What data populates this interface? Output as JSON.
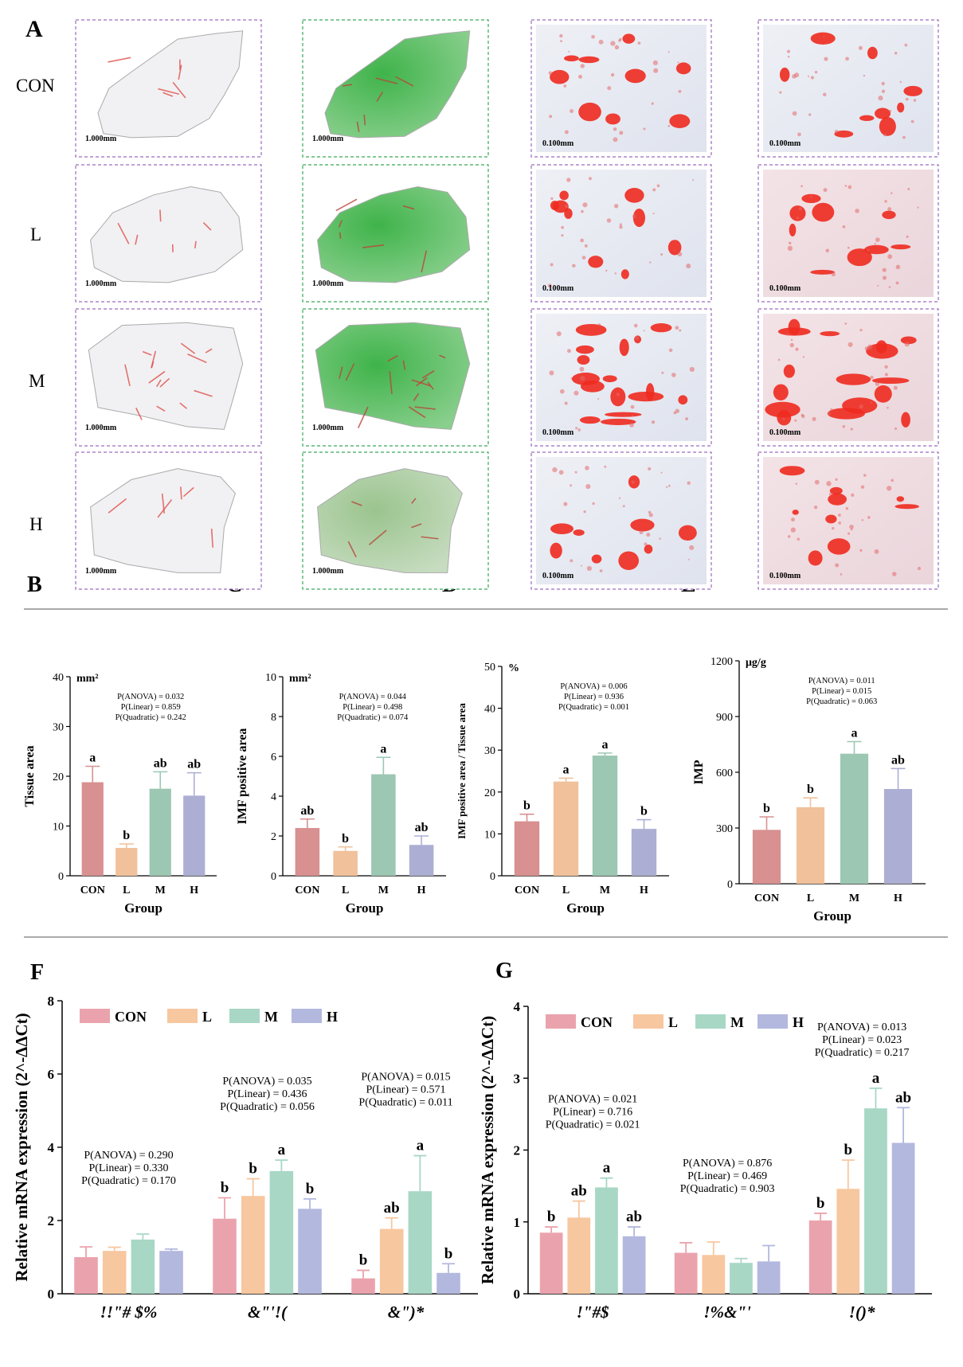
{
  "panel_letters": {
    "A": "A",
    "B": "B",
    "C": "C",
    "D": "D",
    "E": "E",
    "F": "F",
    "G": "G"
  },
  "histology": {
    "rows": [
      "CON",
      "L",
      "M",
      "H"
    ],
    "scale_low": "1.000mm",
    "scale_high": "0.100mm"
  },
  "colors": {
    "CON": "#d89090",
    "L": "#f0c19a",
    "M": "#9cc7b3",
    "H": "#acafd3",
    "CON_gene": "#eaa3ad",
    "L_gene": "#f7c79f",
    "M_gene": "#a8d7c5",
    "H_gene": "#b3b8de",
    "err": "#d89090"
  },
  "chart_data": [
    {
      "id": "B",
      "type": "bar",
      "categories": [
        "CON",
        "L",
        "M",
        "H"
      ],
      "values": [
        18.8,
        5.6,
        17.5,
        16.1
      ],
      "errors": [
        3.2,
        0.8,
        3.4,
        4.6
      ],
      "letters": [
        "a",
        "b",
        "ab",
        "ab"
      ],
      "ylim": [
        0,
        40
      ],
      "yticks": [
        0,
        10,
        20,
        30,
        40
      ],
      "ylabel": "Tissue area",
      "xlabel": "Group",
      "unit": "mm²",
      "stats": [
        "P(ANOVA) = 0.032",
        "P(Linear) = 0.859",
        "P(Quadratic) = 0.242"
      ]
    },
    {
      "id": "C",
      "type": "bar",
      "categories": [
        "CON",
        "L",
        "M",
        "H"
      ],
      "values": [
        2.4,
        1.25,
        5.1,
        1.55
      ],
      "errors": [
        0.45,
        0.2,
        0.85,
        0.45
      ],
      "letters": [
        "ab",
        "b",
        "a",
        "ab"
      ],
      "ylim": [
        0,
        10
      ],
      "yticks": [
        0,
        2,
        4,
        6,
        8,
        10
      ],
      "ylabel": "IMF positive area",
      "xlabel": "Group",
      "unit": "mm²",
      "stats": [
        "P(ANOVA) = 0.044",
        "P(Linear) = 0.498",
        "P(Quadratic) = 0.074"
      ]
    },
    {
      "id": "D",
      "type": "bar",
      "categories": [
        "CON",
        "L",
        "M",
        "H"
      ],
      "values": [
        13.0,
        22.5,
        28.7,
        11.2
      ],
      "errors": [
        1.7,
        0.8,
        0.6,
        2.2
      ],
      "letters": [
        "b",
        "a",
        "a",
        "b"
      ],
      "ylim": [
        0,
        50
      ],
      "yticks": [
        0,
        10,
        20,
        30,
        40,
        50
      ],
      "ylabel": "IMF positive area / Tissue area",
      "xlabel": "Group",
      "unit": "%",
      "stats": [
        "P(ANOVA) = 0.006",
        "P(Linear) = 0.936",
        "P(Quadratic) = 0.001"
      ]
    },
    {
      "id": "E",
      "type": "bar",
      "categories": [
        "CON",
        "L",
        "M",
        "H"
      ],
      "values": [
        290,
        412,
        700,
        510
      ],
      "errors": [
        70,
        50,
        65,
        110
      ],
      "letters": [
        "b",
        "b",
        "a",
        "ab"
      ],
      "ylim": [
        0,
        1200
      ],
      "yticks": [
        0,
        300,
        600,
        900,
        1200
      ],
      "ylabel": "IMP",
      "xlabel": "Group",
      "unit": "μg/g",
      "stats": [
        "P(ANOVA) = 0.011",
        "P(Linear) = 0.015",
        "P(Quadratic) = 0.063"
      ]
    },
    {
      "id": "F",
      "type": "bar",
      "legend": [
        "CON",
        "L",
        "M",
        "H"
      ],
      "genes": [
        "!!\"#  $%",
        "&\"'!(",
        "&\")*"
      ],
      "series": [
        {
          "name": "CON",
          "values": [
            1.0,
            2.05,
            0.42
          ],
          "errors": [
            0.28,
            0.57,
            0.22
          ],
          "letters": [
            "",
            "b",
            "b"
          ]
        },
        {
          "name": "L",
          "values": [
            1.17,
            2.67,
            1.77
          ],
          "errors": [
            0.1,
            0.47,
            0.3
          ],
          "letters": [
            "",
            "b",
            "ab"
          ]
        },
        {
          "name": "M",
          "values": [
            1.48,
            3.35,
            2.8
          ],
          "errors": [
            0.15,
            0.3,
            0.97
          ],
          "letters": [
            "",
            "a",
            "a"
          ]
        },
        {
          "name": "H",
          "values": [
            1.17,
            2.32,
            0.57
          ],
          "errors": [
            0.05,
            0.27,
            0.25
          ],
          "letters": [
            "",
            "b",
            "b"
          ]
        }
      ],
      "stats": [
        [
          "P(ANOVA) = 0.290",
          "P(Linear) = 0.330",
          "P(Quadratic) = 0.170"
        ],
        [
          "P(ANOVA) = 0.035",
          "P(Linear) = 0.436",
          "P(Quadratic) = 0.056"
        ],
        [
          "P(ANOVA) = 0.015",
          "P(Linear) = 0.571",
          "P(Quadratic) = 0.011"
        ]
      ],
      "ylim": [
        0,
        8
      ],
      "yticks": [
        0,
        2,
        4,
        6,
        8
      ],
      "ylabel": "Relative mRNA expression (2^-ΔΔCt)"
    },
    {
      "id": "G",
      "type": "bar",
      "legend": [
        "CON",
        "L",
        "M",
        "H"
      ],
      "genes": [
        "!\"#$",
        "!%&\"'",
        "!()*"
      ],
      "series": [
        {
          "name": "CON",
          "values": [
            0.85,
            0.57,
            1.02
          ],
          "errors": [
            0.08,
            0.14,
            0.1
          ],
          "letters": [
            "b",
            "",
            "b"
          ]
        },
        {
          "name": "L",
          "values": [
            1.06,
            0.54,
            1.46
          ],
          "errors": [
            0.23,
            0.18,
            0.4
          ],
          "letters": [
            "ab",
            "",
            "b"
          ]
        },
        {
          "name": "M",
          "values": [
            1.48,
            0.43,
            2.58
          ],
          "errors": [
            0.13,
            0.06,
            0.28
          ],
          "letters": [
            "a",
            "",
            "a"
          ]
        },
        {
          "name": "H",
          "values": [
            0.8,
            0.45,
            2.1
          ],
          "errors": [
            0.13,
            0.22,
            0.49
          ],
          "letters": [
            "ab",
            "",
            "ab"
          ]
        }
      ],
      "stats": [
        [
          "P(ANOVA) = 0.021",
          "P(Linear) = 0.716",
          "P(Quadratic) = 0.021"
        ],
        [
          "P(ANOVA) = 0.876",
          "P(Linear) = 0.469",
          "P(Quadratic) = 0.903"
        ],
        [
          "P(ANOVA) = 0.013",
          "P(Linear) = 0.023",
          "P(Quadratic) = 0.217"
        ]
      ],
      "ylim": [
        0,
        4
      ],
      "yticks": [
        0,
        1,
        2,
        3,
        4
      ],
      "ylabel": "Relative mRNA expression (2^-ΔΔCt)"
    }
  ]
}
